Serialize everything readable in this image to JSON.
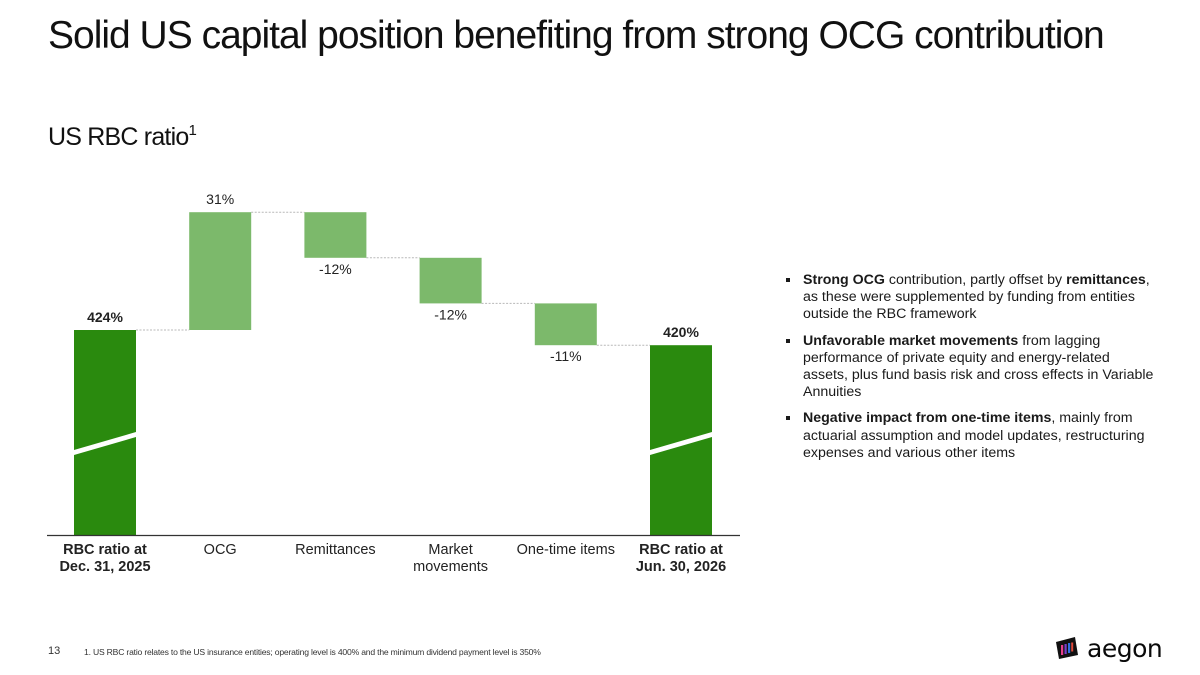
{
  "slide": {
    "title": "Solid US capital position benefiting from strong OCG contribution",
    "subtitle": "US RBC ratio",
    "subtitle_sup": "1",
    "page_number": "13",
    "footnote": "1. US RBC ratio relates to the US insurance entities; operating level is 400% and the minimum dividend payment level is 350%",
    "logo_text": "aegon"
  },
  "bullets": [
    {
      "parts": [
        {
          "text": "Strong OCG",
          "bold": true
        },
        {
          "text": " contribution, partly offset by ",
          "bold": false
        },
        {
          "text": "remittances",
          "bold": true
        },
        {
          "text": ", as these were supplemented by funding from entities outside the RBC framework",
          "bold": false
        }
      ]
    },
    {
      "parts": [
        {
          "text": "Unfavorable market movements",
          "bold": true
        },
        {
          "text": " from lagging performance of private equity and energy-related assets, plus fund basis risk and cross effects in Variable Annuities",
          "bold": false
        }
      ]
    },
    {
      "parts": [
        {
          "text": "Negative impact from one-time items",
          "bold": true
        },
        {
          "text": ", mainly from actuarial assumption and model updates, restructuring expenses and various other items",
          "bold": false
        }
      ]
    }
  ],
  "chart_data": {
    "type": "waterfall",
    "categories": [
      [
        "RBC ratio at",
        "Dec. 31, 2025"
      ],
      [
        "OCG"
      ],
      [
        "Remittances"
      ],
      [
        "Market",
        "movements"
      ],
      [
        "One-time items"
      ],
      [
        "RBC ratio at",
        "Jun. 30, 2026"
      ]
    ],
    "category_bold": [
      true,
      false,
      false,
      false,
      false,
      true
    ],
    "kinds": [
      "total",
      "delta",
      "delta",
      "delta",
      "delta",
      "total"
    ],
    "values": [
      424,
      31,
      -12,
      -12,
      -11,
      420
    ],
    "labels": [
      "424%",
      "31%",
      "-12%",
      "-12%",
      "-11%",
      "420%"
    ],
    "axis_break": true,
    "colors": {
      "total": "#2a8a0e",
      "delta": "#7cb96b",
      "connector": "#b8b8b8",
      "axis": "#333333",
      "break": "#ffffff"
    }
  }
}
